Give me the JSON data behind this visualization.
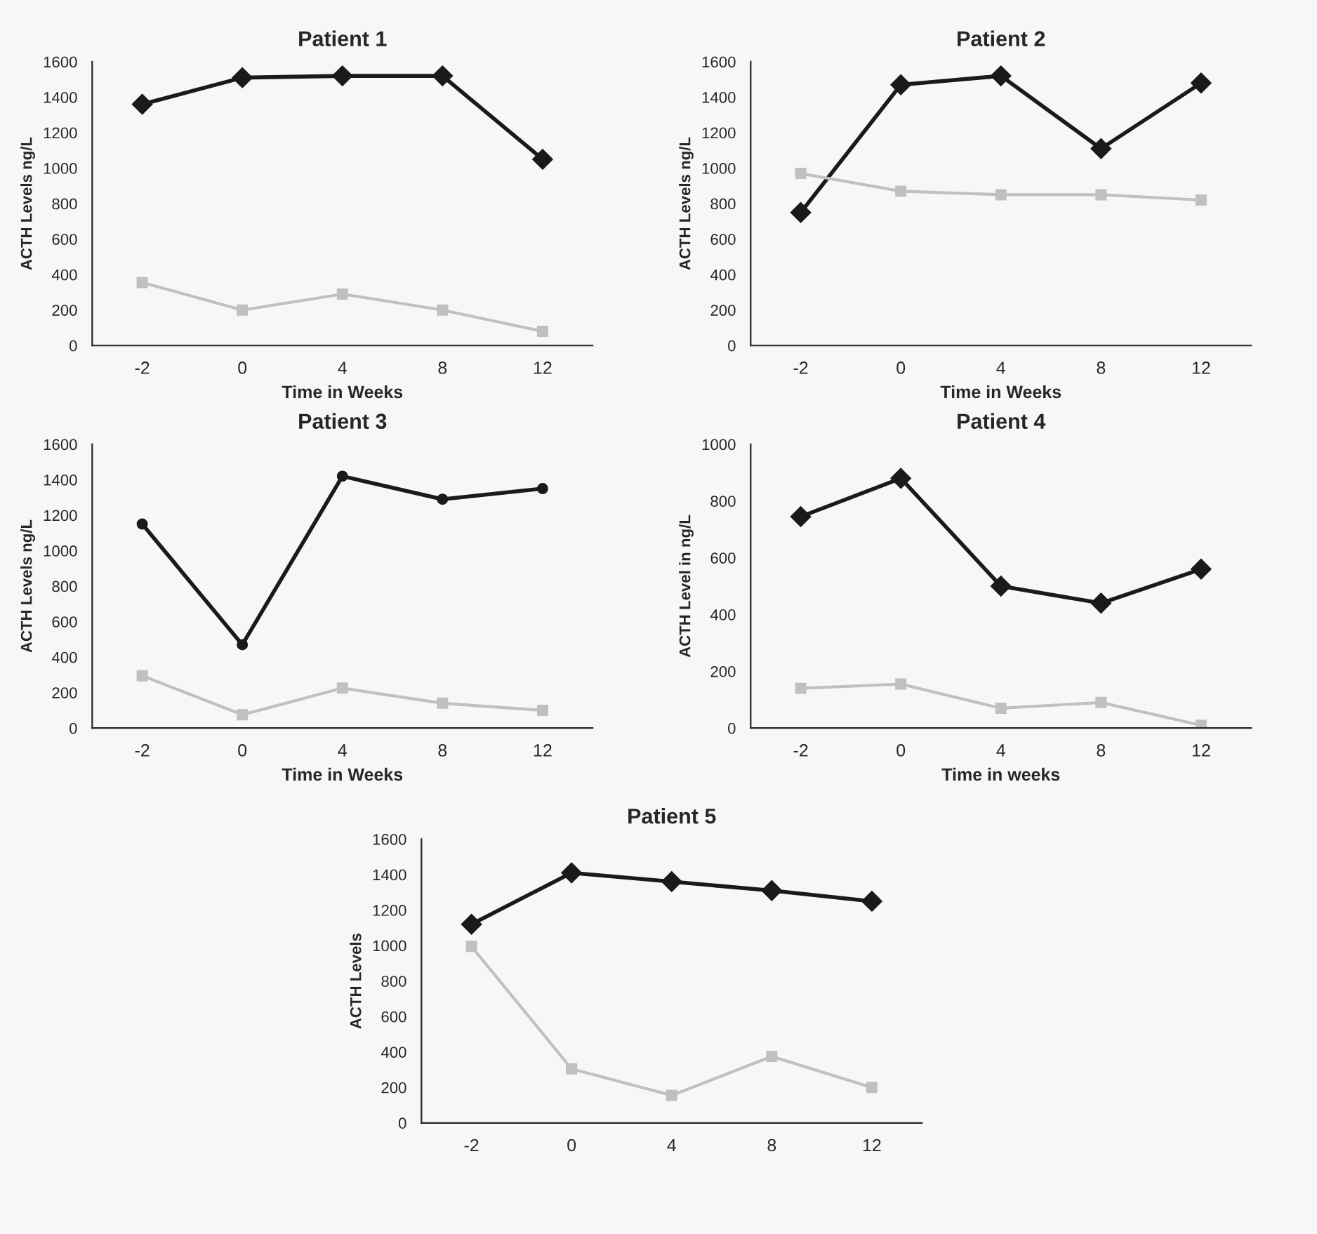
{
  "chart_data": [
    {
      "type": "line",
      "title": "Patient 1",
      "xlabel": "Time in Weeks",
      "ylabel": "ACTH Levels ng/L",
      "categories": [
        "-2",
        "0",
        "4",
        "8",
        "12"
      ],
      "ylim": [
        0,
        1600
      ],
      "yticks": [
        0,
        200,
        400,
        600,
        800,
        1000,
        1200,
        1400,
        1600
      ],
      "grid": false,
      "legend": false,
      "series": [
        {
          "color": "#1a1a1a",
          "marker": "diamond",
          "values": [
            1360,
            1510,
            1520,
            1520,
            1050
          ]
        },
        {
          "color": "#c0c0c0",
          "marker": "square",
          "values": [
            355,
            200,
            290,
            200,
            80
          ]
        }
      ]
    },
    {
      "type": "line",
      "title": "Patient 2",
      "xlabel": "Time in Weeks",
      "ylabel": "ACTH Levels ng/L",
      "categories": [
        "-2",
        "0",
        "4",
        "8",
        "12"
      ],
      "ylim": [
        0,
        1600
      ],
      "yticks": [
        0,
        200,
        400,
        600,
        800,
        1000,
        1200,
        1400,
        1600
      ],
      "grid": false,
      "legend": false,
      "series": [
        {
          "color": "#1a1a1a",
          "marker": "diamond",
          "values": [
            750,
            1470,
            1520,
            1110,
            1480
          ]
        },
        {
          "color": "#c0c0c0",
          "marker": "square",
          "values": [
            970,
            870,
            850,
            850,
            820
          ]
        }
      ]
    },
    {
      "type": "line",
      "title": "Patient 3",
      "xlabel": "Time in Weeks",
      "ylabel": "ACTH Levels ng/L",
      "categories": [
        "-2",
        "0",
        "4",
        "8",
        "12"
      ],
      "ylim": [
        0,
        1600
      ],
      "yticks": [
        0,
        200,
        400,
        600,
        800,
        1000,
        1200,
        1400,
        1600
      ],
      "grid": false,
      "legend": false,
      "series": [
        {
          "color": "#1a1a1a",
          "marker": "circle",
          "values": [
            1150,
            470,
            1420,
            1290,
            1350
          ]
        },
        {
          "color": "#c0c0c0",
          "marker": "square",
          "values": [
            295,
            75,
            225,
            140,
            100
          ]
        }
      ]
    },
    {
      "type": "line",
      "title": "Patient 4",
      "xlabel": "Time in weeks",
      "ylabel": "ACTH Level in ng/L",
      "categories": [
        "-2",
        "0",
        "4",
        "8",
        "12"
      ],
      "ylim": [
        0,
        1000
      ],
      "yticks": [
        0,
        200,
        400,
        600,
        800,
        1000
      ],
      "grid": false,
      "legend": false,
      "series": [
        {
          "color": "#1a1a1a",
          "marker": "diamond",
          "values": [
            745,
            880,
            500,
            440,
            560
          ]
        },
        {
          "color": "#c0c0c0",
          "marker": "square",
          "values": [
            140,
            155,
            70,
            90,
            10
          ]
        }
      ]
    },
    {
      "type": "line",
      "title": "Patient 5",
      "ylabel": "ACTH Levels",
      "categories": [
        "-2",
        "0",
        "4",
        "8",
        "12"
      ],
      "ylim": [
        0,
        1600
      ],
      "yticks": [
        0,
        200,
        400,
        600,
        800,
        1000,
        1200,
        1400,
        1600
      ],
      "grid": false,
      "legend": false,
      "series": [
        {
          "color": "#1a1a1a",
          "marker": "diamond",
          "values": [
            1120,
            1410,
            1360,
            1310,
            1250
          ]
        },
        {
          "color": "#c0c0c0",
          "marker": "square",
          "values": [
            995,
            305,
            155,
            375,
            200
          ]
        }
      ]
    }
  ]
}
